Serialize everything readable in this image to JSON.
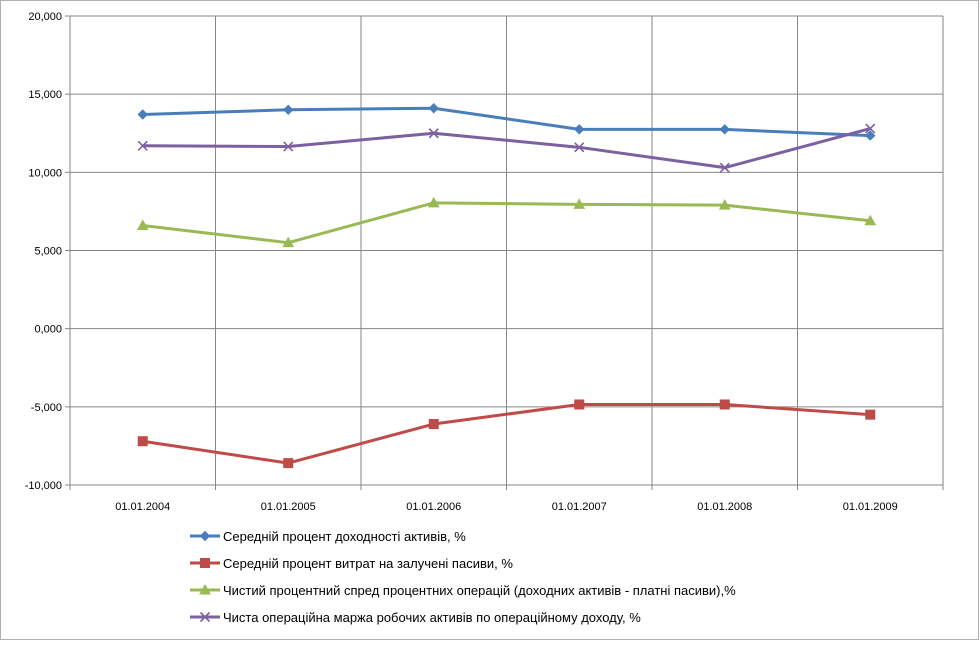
{
  "chart_data": {
    "type": "line",
    "categories": [
      "01.01.2004",
      "01.01.2005",
      "01.01.2006",
      "01.01.2007",
      "01.01.2008",
      "01.01.2009"
    ],
    "y_ticks": [
      "-10,000",
      "-5,000",
      "0,000",
      "5,000",
      "10,000",
      "15,000",
      "20,000"
    ],
    "ylim": [
      -10,
      20
    ],
    "grid": true,
    "legend_position": "bottom",
    "series": [
      {
        "name": "Середній процент доходності активів, %",
        "values": [
          13.7,
          14.0,
          14.1,
          12.75,
          12.75,
          12.35
        ],
        "color": "#4a7ebb",
        "marker": "diamond"
      },
      {
        "name": "Середній процент витрат на залучені пасиви, %",
        "values": [
          -7.2,
          -8.6,
          -6.1,
          -4.85,
          -4.85,
          -5.5
        ],
        "color": "#be4b48",
        "marker": "square"
      },
      {
        "name": "Чистий процентний спред процентних операцій (доходних активів - платні пасиви),%",
        "values": [
          6.6,
          5.5,
          8.05,
          7.95,
          7.9,
          6.9
        ],
        "color": "#98b954",
        "marker": "triangle"
      },
      {
        "name": "Чиста операційна маржа робочих активів по операційному доходу, %",
        "values": [
          11.7,
          11.65,
          12.5,
          11.6,
          10.3,
          12.8
        ],
        "color": "#7d60a0",
        "marker": "x"
      }
    ]
  }
}
